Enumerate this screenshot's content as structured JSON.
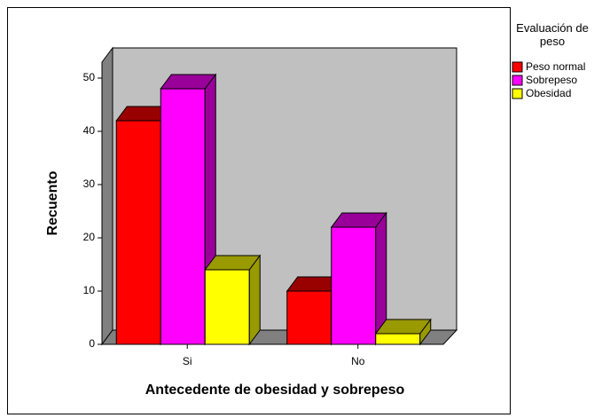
{
  "chart_data": {
    "type": "bar3d",
    "x_label": "Antecedente de obesidad y sobrepeso",
    "y_label": "Recuento",
    "legend_title": "Evaluación de peso",
    "categories": [
      "Si",
      "No"
    ],
    "series": [
      {
        "name": "Peso normal",
        "color": "#ff0000",
        "values": [
          42,
          10
        ]
      },
      {
        "name": "Sobrepeso",
        "color": "#ff00ff",
        "values": [
          48,
          22
        ]
      },
      {
        "name": "Obesidad",
        "color": "#ffff00",
        "values": [
          14,
          2
        ]
      }
    ],
    "ylim": [
      0,
      53
    ],
    "yticks": [
      0,
      10,
      20,
      30,
      40,
      50
    ],
    "legend": "right"
  }
}
